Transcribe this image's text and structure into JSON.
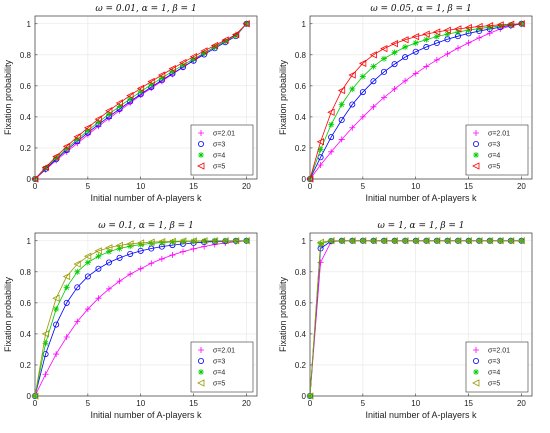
{
  "chart_data": [
    {
      "type": "line",
      "title": "ω = 0.01, α = 1, β = 1",
      "xlabel": "Initial number of A-players k",
      "ylabel": "Fixation probability",
      "xlim": [
        0,
        21
      ],
      "ylim": [
        0,
        1.05
      ],
      "xticks": [
        "0",
        "5",
        "10",
        "15",
        "20"
      ],
      "yticks": [
        "0",
        "0.2",
        "0.4",
        "0.6",
        "0.8",
        "1"
      ],
      "grid": true,
      "legend_position": "bottom-right",
      "x": [
        0,
        1,
        2,
        3,
        4,
        5,
        6,
        7,
        8,
        9,
        10,
        11,
        12,
        13,
        14,
        15,
        16,
        17,
        18,
        19,
        20
      ],
      "series": [
        {
          "name": "σ=2.01",
          "color": "#ff00ff",
          "marker": "plus",
          "values": [
            0,
            0.06,
            0.12,
            0.175,
            0.23,
            0.285,
            0.34,
            0.39,
            0.44,
            0.49,
            0.54,
            0.585,
            0.63,
            0.675,
            0.72,
            0.765,
            0.81,
            0.85,
            0.89,
            0.93,
            1.0
          ]
        },
        {
          "name": "σ=3",
          "color": "#0000ff",
          "marker": "circle",
          "values": [
            0,
            0.065,
            0.127,
            0.186,
            0.243,
            0.298,
            0.351,
            0.402,
            0.451,
            0.499,
            0.546,
            0.592,
            0.636,
            0.679,
            0.721,
            0.762,
            0.802,
            0.842,
            0.881,
            0.92,
            1.0
          ]
        },
        {
          "name": "σ=4",
          "color": "#00cc00",
          "marker": "star",
          "values": [
            0,
            0.07,
            0.135,
            0.196,
            0.255,
            0.312,
            0.366,
            0.418,
            0.468,
            0.516,
            0.563,
            0.608,
            0.651,
            0.693,
            0.734,
            0.773,
            0.812,
            0.85,
            0.887,
            0.923,
            1.0
          ]
        },
        {
          "name": "σ=5",
          "color": "#ff0000",
          "marker": "triangle-left",
          "values": [
            0,
            0.075,
            0.145,
            0.21,
            0.272,
            0.33,
            0.386,
            0.44,
            0.49,
            0.538,
            0.584,
            0.628,
            0.67,
            0.711,
            0.75,
            0.788,
            0.825,
            0.86,
            0.895,
            0.93,
            1.0
          ]
        }
      ]
    },
    {
      "type": "line",
      "title": "ω = 0.05, α = 1, β = 1",
      "xlabel": "Initial number of A-players k",
      "ylabel": "Fixation probability",
      "xlim": [
        0,
        21
      ],
      "ylim": [
        0,
        1.05
      ],
      "xticks": [
        "0",
        "5",
        "10",
        "15",
        "20"
      ],
      "yticks": [
        "0",
        "0.2",
        "0.4",
        "0.6",
        "0.8",
        "1"
      ],
      "grid": true,
      "legend_position": "bottom-right",
      "x": [
        0,
        1,
        2,
        3,
        4,
        5,
        6,
        7,
        8,
        9,
        10,
        11,
        12,
        13,
        14,
        15,
        16,
        17,
        18,
        19,
        20
      ],
      "series": [
        {
          "name": "σ=2.01",
          "color": "#ff00ff",
          "marker": "plus",
          "values": [
            0,
            0.09,
            0.175,
            0.255,
            0.33,
            0.4,
            0.465,
            0.525,
            0.58,
            0.632,
            0.68,
            0.725,
            0.767,
            0.806,
            0.843,
            0.877,
            0.909,
            0.939,
            0.967,
            0.985,
            1.0
          ]
        },
        {
          "name": "σ=3",
          "color": "#0000ff",
          "marker": "circle",
          "values": [
            0,
            0.14,
            0.27,
            0.38,
            0.48,
            0.56,
            0.63,
            0.69,
            0.74,
            0.785,
            0.82,
            0.85,
            0.876,
            0.9,
            0.92,
            0.938,
            0.953,
            0.966,
            0.978,
            0.99,
            1.0
          ]
        },
        {
          "name": "σ=4",
          "color": "#00cc00",
          "marker": "star",
          "values": [
            0,
            0.19,
            0.35,
            0.48,
            0.58,
            0.66,
            0.725,
            0.775,
            0.815,
            0.85,
            0.876,
            0.898,
            0.917,
            0.933,
            0.947,
            0.959,
            0.969,
            0.978,
            0.986,
            0.993,
            1.0
          ]
        },
        {
          "name": "σ=5",
          "color": "#ff0000",
          "marker": "triangle-left",
          "values": [
            0,
            0.24,
            0.43,
            0.57,
            0.67,
            0.745,
            0.8,
            0.84,
            0.872,
            0.897,
            0.917,
            0.933,
            0.947,
            0.958,
            0.967,
            0.975,
            0.982,
            0.988,
            0.993,
            0.997,
            1.0
          ]
        }
      ]
    },
    {
      "type": "line",
      "title": "ω = 0.1, α = 1, β = 1",
      "xlabel": "Initial number of A-players k",
      "ylabel": "Fixation probability",
      "xlim": [
        0,
        21
      ],
      "ylim": [
        0,
        1.05
      ],
      "xticks": [
        "0",
        "5",
        "10",
        "15",
        "20"
      ],
      "yticks": [
        "0",
        "0.2",
        "0.4",
        "0.6",
        "0.8",
        "1"
      ],
      "grid": true,
      "legend_position": "bottom-right",
      "x": [
        0,
        1,
        2,
        3,
        4,
        5,
        6,
        7,
        8,
        9,
        10,
        11,
        12,
        13,
        14,
        15,
        16,
        17,
        18,
        19,
        20
      ],
      "series": [
        {
          "name": "σ=2.01",
          "color": "#ff00ff",
          "marker": "plus",
          "values": [
            0,
            0.14,
            0.27,
            0.38,
            0.48,
            0.56,
            0.63,
            0.69,
            0.74,
            0.785,
            0.82,
            0.855,
            0.883,
            0.908,
            0.93,
            0.948,
            0.963,
            0.976,
            0.986,
            0.994,
            1.0
          ]
        },
        {
          "name": "σ=3",
          "color": "#0000ff",
          "marker": "circle",
          "values": [
            0,
            0.27,
            0.46,
            0.6,
            0.7,
            0.77,
            0.82,
            0.86,
            0.89,
            0.915,
            0.935,
            0.95,
            0.962,
            0.972,
            0.98,
            0.986,
            0.991,
            0.995,
            0.997,
            0.999,
            1.0
          ]
        },
        {
          "name": "σ=4",
          "color": "#00cc00",
          "marker": "star",
          "values": [
            0,
            0.34,
            0.56,
            0.7,
            0.8,
            0.86,
            0.9,
            0.93,
            0.95,
            0.965,
            0.975,
            0.983,
            0.988,
            0.992,
            0.995,
            0.997,
            0.998,
            0.999,
            1.0,
            1.0,
            1.0
          ]
        },
        {
          "name": "σ=5",
          "color": "#999900",
          "marker": "triangle-left",
          "values": [
            0,
            0.4,
            0.63,
            0.77,
            0.85,
            0.9,
            0.935,
            0.955,
            0.97,
            0.98,
            0.986,
            0.991,
            0.994,
            0.996,
            0.998,
            0.999,
            1.0,
            1.0,
            1.0,
            1.0,
            1.0
          ]
        }
      ]
    },
    {
      "type": "line",
      "title": "ω = 1, α = 1, β = 1",
      "xlabel": "Initial number of A-players k",
      "ylabel": "Fixation probability",
      "xlim": [
        0,
        21
      ],
      "ylim": [
        0,
        1.05
      ],
      "xticks": [
        "0",
        "5",
        "10",
        "15",
        "20"
      ],
      "yticks": [
        "0",
        "0.2",
        "0.4",
        "0.6",
        "0.8",
        "1"
      ],
      "grid": true,
      "legend_position": "bottom-right",
      "x": [
        0,
        1,
        2,
        3,
        4,
        5,
        6,
        7,
        8,
        9,
        10,
        11,
        12,
        13,
        14,
        15,
        16,
        17,
        18,
        19,
        20
      ],
      "series": [
        {
          "name": "σ=2.01",
          "color": "#ff00ff",
          "marker": "plus",
          "values": [
            0,
            0.86,
            0.995,
            1.0,
            1.0,
            1.0,
            1.0,
            1.0,
            1.0,
            1.0,
            1.0,
            1.0,
            1.0,
            1.0,
            1.0,
            1.0,
            1.0,
            1.0,
            1.0,
            1.0,
            1.0
          ]
        },
        {
          "name": "σ=3",
          "color": "#0000ff",
          "marker": "circle",
          "values": [
            0,
            0.95,
            0.998,
            1.0,
            1.0,
            1.0,
            1.0,
            1.0,
            1.0,
            1.0,
            1.0,
            1.0,
            1.0,
            1.0,
            1.0,
            1.0,
            1.0,
            1.0,
            1.0,
            1.0,
            1.0
          ]
        },
        {
          "name": "σ=4",
          "color": "#00cc00",
          "marker": "star",
          "values": [
            0,
            0.98,
            1.0,
            1.0,
            1.0,
            1.0,
            1.0,
            1.0,
            1.0,
            1.0,
            1.0,
            1.0,
            1.0,
            1.0,
            1.0,
            1.0,
            1.0,
            1.0,
            1.0,
            1.0,
            1.0
          ]
        },
        {
          "name": "σ=5",
          "color": "#999900",
          "marker": "triangle-left",
          "values": [
            0,
            0.99,
            1.0,
            1.0,
            1.0,
            1.0,
            1.0,
            1.0,
            1.0,
            1.0,
            1.0,
            1.0,
            1.0,
            1.0,
            1.0,
            1.0,
            1.0,
            1.0,
            1.0,
            1.0,
            1.0
          ]
        }
      ]
    }
  ]
}
